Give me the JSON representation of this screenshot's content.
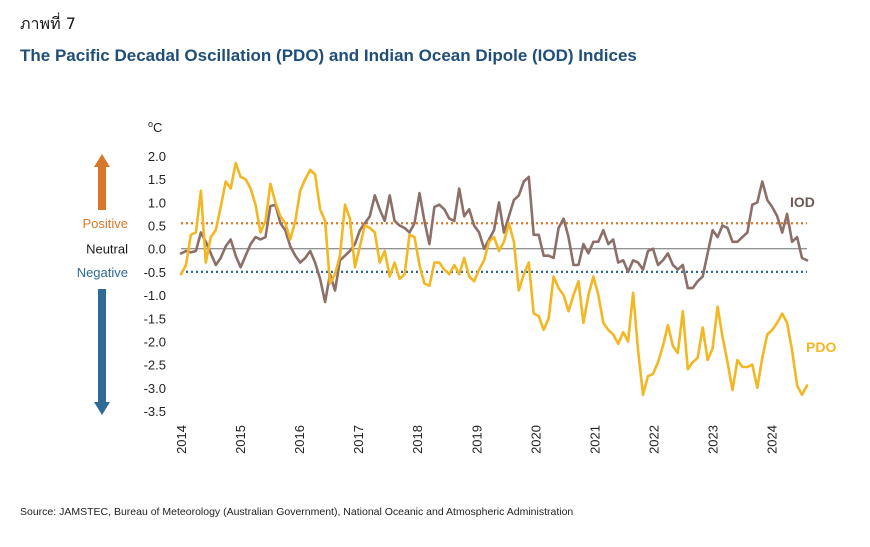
{
  "figure_label": "ภาพที่ 7",
  "chart_data": {
    "type": "line",
    "title": "The Pacific Decadal Oscillation (PDO) and Indian Ocean Dipole (IOD) Indices",
    "ylabel": "oC",
    "ylim": [
      -3.5,
      2.0
    ],
    "yticks": [
      "2.0",
      "1.5",
      "1.0",
      "0.5",
      "0.0",
      "-0.5",
      "-1.0",
      "-1.5",
      "-2.0",
      "-2.5",
      "-3.0",
      "-3.5"
    ],
    "x_labels": [
      "2014",
      "2015",
      "2016",
      "2017",
      "2018",
      "2019",
      "2020",
      "2021",
      "2022",
      "2023",
      "2024"
    ],
    "x_range": [
      2014.0,
      2024.6
    ],
    "thresholds": [
      {
        "label": "Positive",
        "value": 0.55,
        "color": "#d7772a"
      },
      {
        "label": "Neutral",
        "value": 0.0,
        "color": "#7f7f7f"
      },
      {
        "label": "Negative",
        "value": -0.5,
        "color": "#2e6a96"
      }
    ],
    "series": [
      {
        "name": "IOD",
        "color": "#8b6f68",
        "values": [
          -0.1,
          -0.05,
          -0.08,
          -0.05,
          0.35,
          0.15,
          -0.1,
          -0.35,
          -0.2,
          0.05,
          0.2,
          -0.15,
          -0.4,
          -0.15,
          0.1,
          0.25,
          0.2,
          0.25,
          0.92,
          0.95,
          0.55,
          0.4,
          0.05,
          -0.15,
          -0.3,
          -0.2,
          -0.05,
          -0.3,
          -0.65,
          -1.15,
          -0.55,
          -0.9,
          -0.25,
          -0.15,
          -0.05,
          0.1,
          0.4,
          0.55,
          0.7,
          1.15,
          0.85,
          0.6,
          1.15,
          0.6,
          0.5,
          0.45,
          0.35,
          0.55,
          1.2,
          0.6,
          0.1,
          0.9,
          0.95,
          0.85,
          0.65,
          0.6,
          1.3,
          0.7,
          0.85,
          0.5,
          0.35,
          0.0,
          0.2,
          0.4,
          1.0,
          0.35,
          0.7,
          1.05,
          1.15,
          1.45,
          1.55,
          0.3,
          0.3,
          -0.15,
          -0.15,
          -0.2,
          0.45,
          0.65,
          0.25,
          -0.35,
          -0.35,
          0.1,
          -0.1,
          0.15,
          0.15,
          0.4,
          0.1,
          0.2,
          -0.3,
          -0.25,
          -0.5,
          -0.25,
          -0.3,
          -0.45,
          -0.05,
          0.0,
          -0.35,
          -0.25,
          -0.1,
          -0.35,
          -0.45,
          -0.35,
          -0.85,
          -0.85,
          -0.7,
          -0.6,
          -0.1,
          0.4,
          0.25,
          0.5,
          0.45,
          0.15,
          0.15,
          0.25,
          0.35,
          0.95,
          1.0,
          1.45,
          1.05,
          0.9,
          0.7,
          0.35,
          0.75,
          0.15,
          0.25,
          -0.2,
          -0.25
        ]
      },
      {
        "name": "PDO",
        "color": "#f2b722",
        "values": [
          -0.55,
          -0.35,
          0.3,
          0.35,
          1.25,
          -0.3,
          0.25,
          0.4,
          0.9,
          1.45,
          1.3,
          1.85,
          1.55,
          1.5,
          1.3,
          0.95,
          0.35,
          0.6,
          1.4,
          1.0,
          0.7,
          0.55,
          0.2,
          0.6,
          1.25,
          1.5,
          1.7,
          1.6,
          0.85,
          0.6,
          -0.75,
          -0.55,
          -0.15,
          0.95,
          0.65,
          -0.4,
          0.05,
          0.5,
          0.45,
          0.35,
          -0.3,
          -0.05,
          -0.6,
          -0.3,
          -0.65,
          -0.55,
          0.3,
          0.25,
          -0.35,
          -0.75,
          -0.8,
          -0.3,
          -0.3,
          -0.45,
          -0.55,
          -0.35,
          -0.55,
          -0.2,
          -0.6,
          -0.7,
          -0.45,
          -0.25,
          0.15,
          0.25,
          -0.05,
          0.15,
          0.55,
          0.15,
          -0.9,
          -0.55,
          -0.3,
          -1.4,
          -1.45,
          -1.75,
          -1.5,
          -0.6,
          -0.85,
          -1.0,
          -1.35,
          -1.0,
          -0.7,
          -1.6,
          -1.0,
          -0.6,
          -1.0,
          -1.6,
          -1.75,
          -1.85,
          -2.05,
          -1.8,
          -2.0,
          -0.95,
          -2.2,
          -3.15,
          -2.75,
          -2.7,
          -2.45,
          -2.1,
          -1.65,
          -2.1,
          -2.25,
          -1.35,
          -2.6,
          -2.45,
          -2.35,
          -1.7,
          -2.4,
          -2.15,
          -1.25,
          -1.9,
          -2.45,
          -3.05,
          -2.4,
          -2.55,
          -2.55,
          -2.5,
          -3.0,
          -2.35,
          -1.85,
          -1.75,
          -1.6,
          -1.4,
          -1.6,
          -2.2,
          -2.95,
          -3.15,
          -2.95
        ]
      }
    ]
  },
  "source": "Source: JAMSTEC, Bureau of Meteorology (Australian Government), National Oceanic and Atmospheric Administration"
}
